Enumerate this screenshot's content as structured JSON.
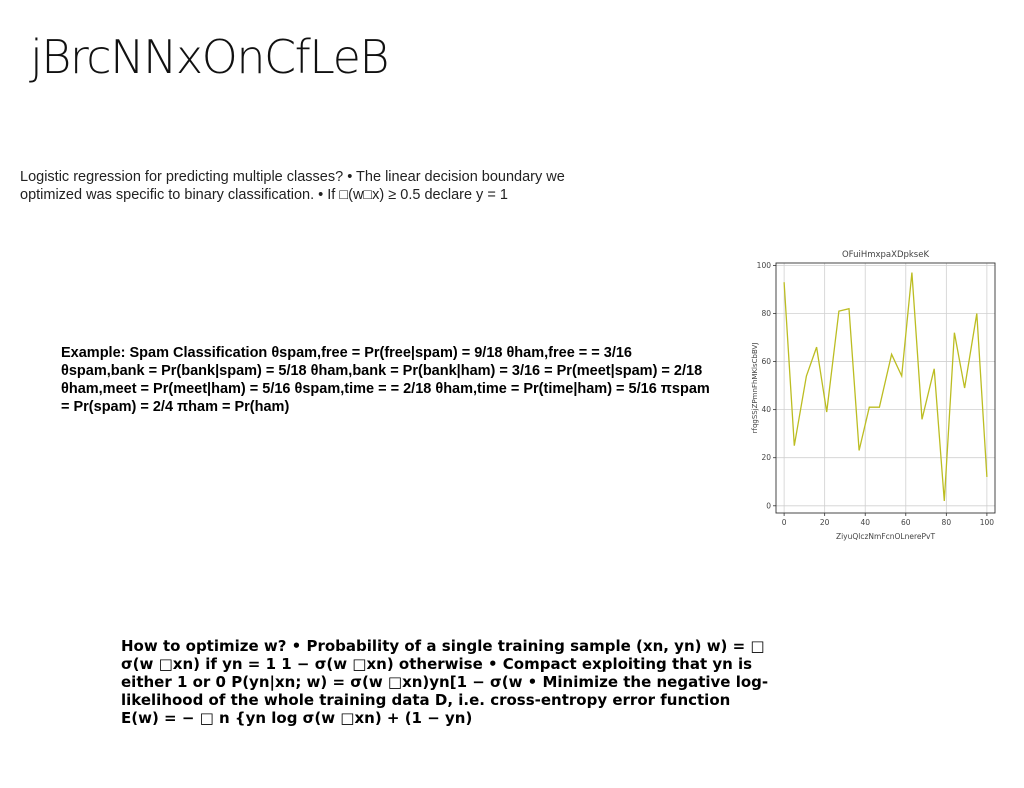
{
  "title": "jBrcNNxOnCfLeB",
  "intro": "Logistic regression for predicting multiple classes? • The linear decision boundary we optimized was specific to binary classification. • If □(w□x) ≥ 0.5 declare y = 1",
  "example": "Example: Spam Classification θspam,free = Pr(free|spam) = 9/18 θham,free = = 3/16 θspam,bank = Pr(bank|spam) = 5/18 θham,bank = Pr(bank|ham) = 3/16 = Pr(meet|spam) = 2/18 θham,meet = Pr(meet|ham) = 5/16 θspam,time = = 2/18 θham,time = Pr(time|ham) = 5/16 πspam = Pr(spam) = 2/4 πham = Pr(ham)",
  "optimize": "How to optimize w? • Probability of a single training sample (xn, yn) w) = □ σ(w □xn) if yn = 1 1 − σ(w □xn) otherwise • Compact exploiting that yn is either 1 or 0 P(yn|xn; w) = σ(w □xn)yn[1 − σ(w • Minimize the negative log-likelihood of the whole training data D, i.e. cross-entropy error function E(w) = − □ n {yn log σ(w □xn) + (1 − yn)",
  "chart_data": {
    "type": "line",
    "title": "OFuiHmxpaXDpkseK",
    "xlabel": "ZiyuQlczNmFcnOLnerePvT",
    "ylabel": "rfqgSSjZPmnFhMKlsCbBVJ",
    "xlim": [
      -4,
      104
    ],
    "ylim": [
      -3,
      101
    ],
    "xticks": [
      0,
      20,
      40,
      60,
      80,
      100
    ],
    "yticks": [
      0,
      20,
      40,
      60,
      80,
      100
    ],
    "grid": true,
    "color": "#bcbd22",
    "x": [
      0,
      5,
      11,
      16,
      21,
      27,
      32,
      37,
      42,
      47,
      53,
      58,
      63,
      68,
      74,
      79,
      84,
      89,
      95,
      100
    ],
    "y": [
      93,
      25,
      54,
      66,
      39,
      81,
      82,
      23,
      41,
      41,
      63,
      54,
      97,
      36,
      57,
      2,
      72,
      49,
      80,
      12
    ]
  }
}
